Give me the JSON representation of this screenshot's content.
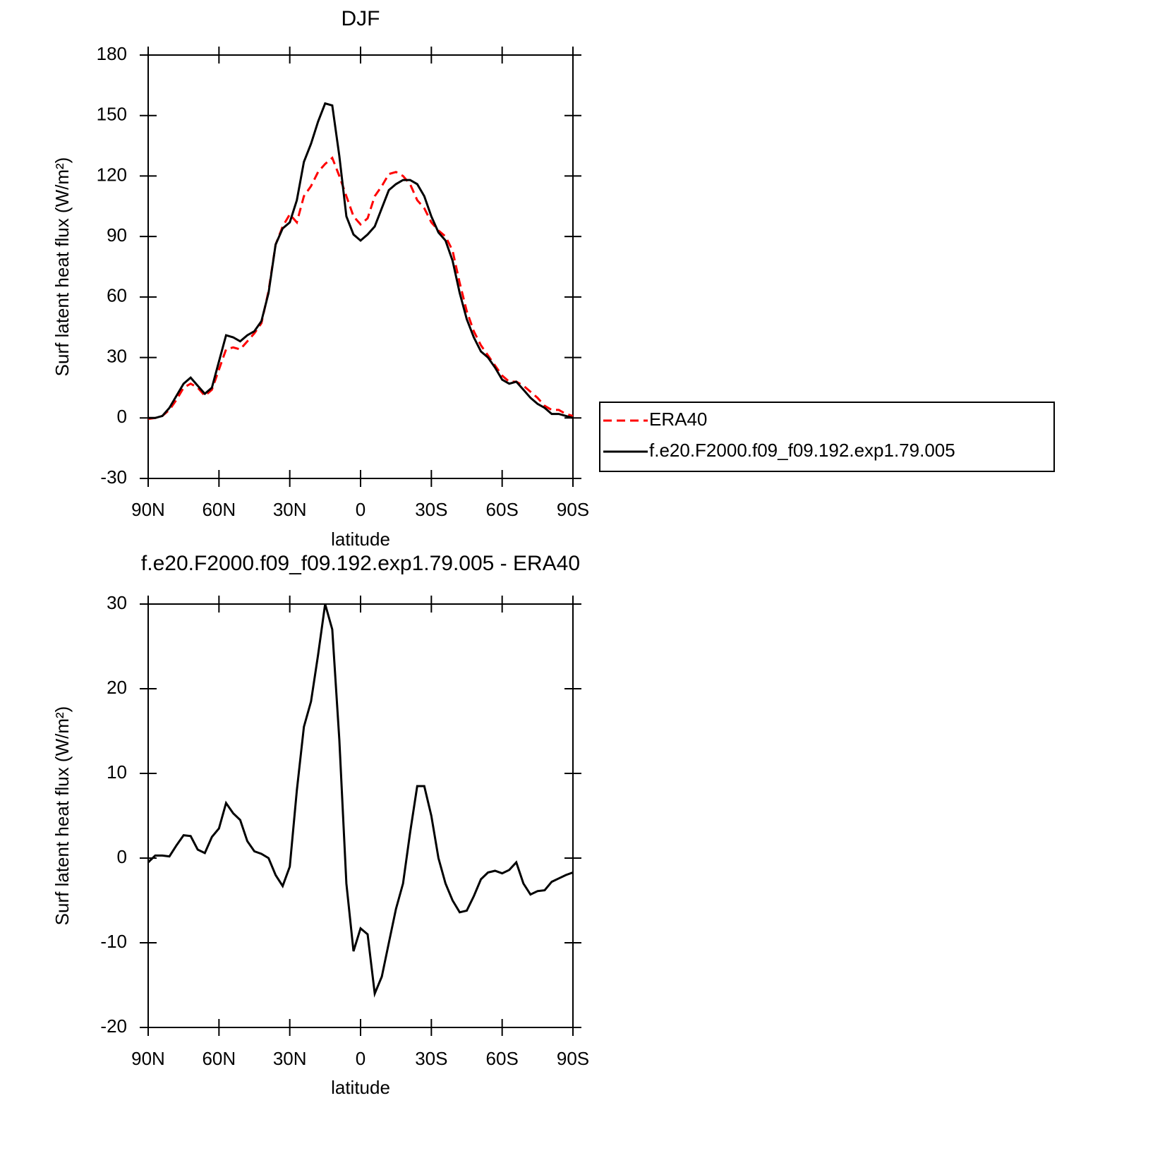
{
  "chart_data": [
    {
      "type": "line",
      "title": "DJF",
      "xlabel": "latitude",
      "ylabel": "Surf latent heat flux (W/m²)",
      "x": [
        90,
        87,
        84,
        81,
        78,
        75,
        72,
        69,
        66,
        63,
        60,
        57,
        54,
        51,
        48,
        45,
        42,
        39,
        36,
        33,
        30,
        27,
        24,
        21,
        18,
        15,
        12,
        9,
        6,
        3,
        0,
        -3,
        -6,
        -9,
        -12,
        -15,
        -18,
        -21,
        -24,
        -27,
        -30,
        -33,
        -36,
        -39,
        -42,
        -45,
        -48,
        -51,
        -54,
        -57,
        -60,
        -63,
        -66,
        -69,
        -72,
        -75,
        -78,
        -81,
        -84,
        -87,
        -90
      ],
      "series": [
        {
          "name": "ERA40",
          "color": "#ff0000",
          "dashed": true,
          "values": [
            -0.5,
            0,
            1,
            4,
            9,
            15,
            17,
            15,
            11,
            14,
            24,
            34,
            35,
            34,
            38,
            42,
            47,
            63,
            86,
            95,
            101,
            97,
            110,
            115,
            122,
            126,
            129,
            120,
            110,
            100,
            96,
            99,
            110,
            115,
            121,
            122,
            120,
            116,
            108,
            104,
            97,
            93,
            90,
            83,
            67,
            53,
            43,
            36,
            31,
            26,
            21,
            18,
            18,
            16,
            13,
            10,
            6,
            4,
            4,
            2,
            1
          ]
        },
        {
          "name": "f.e20.F2000.f09_f09.192.exp1.79.005",
          "color": "#000000",
          "dashed": false,
          "values": [
            0,
            0,
            1,
            5,
            11,
            17,
            20,
            16,
            12,
            15,
            28,
            41,
            40,
            38,
            41,
            43,
            48,
            62,
            86,
            94,
            97,
            108,
            127,
            136,
            147,
            156,
            155,
            130,
            100,
            91,
            88,
            91,
            95,
            104,
            113,
            116,
            118,
            118,
            116,
            110,
            100,
            92,
            88,
            78,
            62,
            49,
            40,
            33,
            30,
            25,
            19,
            17,
            18,
            14,
            10,
            7,
            5,
            2,
            2,
            1,
            0
          ]
        }
      ],
      "xlim": [
        90,
        -90
      ],
      "xticks": [
        {
          "value": 90,
          "label": "90N"
        },
        {
          "value": 60,
          "label": "60N"
        },
        {
          "value": 30,
          "label": "30N"
        },
        0,
        {
          "value": -30,
          "label": "30S"
        },
        {
          "value": -60,
          "label": "60S"
        },
        {
          "value": -90,
          "label": "90S"
        }
      ],
      "ylim": [
        -30,
        180
      ],
      "yticks": [
        -30,
        0,
        30,
        60,
        90,
        120,
        150,
        180
      ],
      "legend": "right"
    },
    {
      "type": "line",
      "title": "f.e20.F2000.f09_f09.192.exp1.79.005 - ERA40",
      "xlabel": "latitude",
      "ylabel": "Surf latent heat flux (W/m²)",
      "x": [
        90,
        87,
        84,
        81,
        78,
        75,
        72,
        69,
        66,
        63,
        60,
        57,
        54,
        51,
        48,
        45,
        42,
        39,
        36,
        33,
        30,
        27,
        24,
        21,
        18,
        15,
        12,
        9,
        6,
        3,
        0,
        -3,
        -6,
        -9,
        -12,
        -15,
        -18,
        -21,
        -24,
        -27,
        -30,
        -33,
        -36,
        -39,
        -42,
        -45,
        -48,
        -51,
        -54,
        -57,
        -60,
        -63,
        -66,
        -69,
        -72,
        -75,
        -78,
        -81,
        -84,
        -87,
        -90
      ],
      "values": [
        -0.5,
        0.3,
        0.3,
        0.2,
        1.5,
        2.7,
        2.6,
        1,
        0.6,
        2.5,
        3.5,
        6.5,
        5.3,
        4.5,
        2,
        0.8,
        0.5,
        0,
        -2,
        -3.3,
        -1,
        8,
        15.5,
        18.5,
        24,
        30,
        27,
        14,
        -3,
        -11,
        -8.3,
        -9,
        -16,
        -14,
        -10,
        -6,
        -3,
        3,
        8.5,
        8.5,
        5,
        0,
        -3,
        -5,
        -6.4,
        -6.2,
        -4.5,
        -2.5,
        -1.7,
        -1.5,
        -1.8,
        -1.4,
        -0.5,
        -3,
        -4.3,
        -3.9,
        -3.8,
        -2.8,
        -2.4,
        -2,
        -1.7
      ],
      "color": "#000000",
      "xlim": [
        90,
        -90
      ],
      "xticks": [
        {
          "value": 90,
          "label": "90N"
        },
        {
          "value": 60,
          "label": "60N"
        },
        {
          "value": 30,
          "label": "30N"
        },
        0,
        {
          "value": -30,
          "label": "30S"
        },
        {
          "value": -60,
          "label": "60S"
        },
        {
          "value": -90,
          "label": "90S"
        }
      ],
      "ylim": [
        -20,
        30
      ],
      "yticks": [
        -20,
        -10,
        0,
        10,
        20,
        30
      ]
    }
  ]
}
